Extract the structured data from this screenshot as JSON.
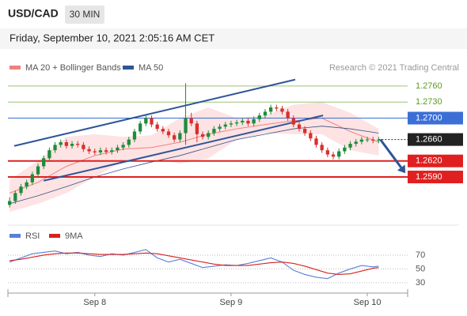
{
  "header": {
    "symbol": "USD/CAD",
    "timeframe": "30 MIN",
    "datetime": "Friday, September 10, 2021 2:05:16 AM CET"
  },
  "chart_data": [
    {
      "type": "candlestick",
      "credit": "Research © 2021 Trading Central",
      "xlim": [
        -0.3,
        70.1
      ],
      "ylim": [
        1.25,
        1.281
      ],
      "xticks": [
        {
          "value": 15,
          "label": "Sep 8"
        },
        {
          "value": 39,
          "label": "Sep 9"
        },
        {
          "value": 63,
          "label": "Sep 10"
        }
      ],
      "up_color": "#1e8c3a",
      "down_color": "#d9302c",
      "candles": [
        [
          1.2538,
          1.2552,
          1.2533,
          1.2545
        ],
        [
          1.2545,
          1.2565,
          1.254,
          1.256
        ],
        [
          1.256,
          1.2577,
          1.2555,
          1.2572
        ],
        [
          1.2572,
          1.2585,
          1.2567,
          1.258
        ],
        [
          1.258,
          1.26,
          1.2575,
          1.2595
        ],
        [
          1.2595,
          1.2615,
          1.259,
          1.261
        ],
        [
          1.261,
          1.263,
          1.2605,
          1.2625
        ],
        [
          1.2625,
          1.2645,
          1.262,
          1.264
        ],
        [
          1.264,
          1.2655,
          1.2635,
          1.265
        ],
        [
          1.265,
          1.266,
          1.2645,
          1.2655
        ],
        [
          1.2655,
          1.266,
          1.2643,
          1.2648
        ],
        [
          1.2648,
          1.2657,
          1.2643,
          1.2652
        ],
        [
          1.2652,
          1.2657,
          1.2645,
          1.265
        ],
        [
          1.265,
          1.2655,
          1.2637,
          1.2642
        ],
        [
          1.2642,
          1.2647,
          1.2633,
          1.2638
        ],
        [
          1.2638,
          1.2643,
          1.2631,
          1.2636
        ],
        [
          1.2636,
          1.2645,
          1.2631,
          1.264
        ],
        [
          1.264,
          1.2645,
          1.2632,
          1.2637
        ],
        [
          1.2637,
          1.2645,
          1.2632,
          1.264
        ],
        [
          1.264,
          1.265,
          1.2635,
          1.2645
        ],
        [
          1.2645,
          1.2655,
          1.264,
          1.265
        ],
        [
          1.265,
          1.2665,
          1.2645,
          1.266
        ],
        [
          1.266,
          1.268,
          1.2655,
          1.2675
        ],
        [
          1.2675,
          1.2695,
          1.267,
          1.269
        ],
        [
          1.269,
          1.2705,
          1.2685,
          1.27
        ],
        [
          1.27,
          1.2705,
          1.2683,
          1.2688
        ],
        [
          1.2688,
          1.2693,
          1.2675,
          1.268
        ],
        [
          1.268,
          1.2685,
          1.267,
          1.2675
        ],
        [
          1.2675,
          1.268,
          1.2663,
          1.2668
        ],
        [
          1.2668,
          1.2673,
          1.2655,
          1.266
        ],
        [
          1.266,
          1.2677,
          1.2655,
          1.2672
        ],
        [
          1.2672,
          1.2765,
          1.265,
          1.27
        ],
        [
          1.27,
          1.271,
          1.2685,
          1.269
        ],
        [
          1.269,
          1.2695,
          1.2655,
          1.267
        ],
        [
          1.267,
          1.2675,
          1.266,
          1.2665
        ],
        [
          1.2665,
          1.2677,
          1.266,
          1.2672
        ],
        [
          1.2672,
          1.2685,
          1.2667,
          1.268
        ],
        [
          1.268,
          1.2689,
          1.2675,
          1.2684
        ],
        [
          1.2684,
          1.2693,
          1.2679,
          1.2688
        ],
        [
          1.2688,
          1.2695,
          1.2683,
          1.269
        ],
        [
          1.269,
          1.2697,
          1.2685,
          1.2692
        ],
        [
          1.2692,
          1.27,
          1.2687,
          1.2695
        ],
        [
          1.2695,
          1.27,
          1.2685,
          1.269
        ],
        [
          1.269,
          1.2703,
          1.2685,
          1.2698
        ],
        [
          1.2698,
          1.271,
          1.2693,
          1.2705
        ],
        [
          1.2705,
          1.2717,
          1.27,
          1.2712
        ],
        [
          1.2712,
          1.2725,
          1.2707,
          1.272
        ],
        [
          1.272,
          1.2725,
          1.2713,
          1.2718
        ],
        [
          1.2718,
          1.2723,
          1.2707,
          1.2712
        ],
        [
          1.2712,
          1.2717,
          1.2695,
          1.27
        ],
        [
          1.27,
          1.2705,
          1.2683,
          1.2688
        ],
        [
          1.2688,
          1.2693,
          1.2675,
          1.268
        ],
        [
          1.268,
          1.2685,
          1.2667,
          1.2672
        ],
        [
          1.2672,
          1.2677,
          1.2657,
          1.2662
        ],
        [
          1.2662,
          1.2667,
          1.2645,
          1.265
        ],
        [
          1.265,
          1.2655,
          1.2635,
          1.264
        ],
        [
          1.264,
          1.2645,
          1.2627,
          1.2632
        ],
        [
          1.2632,
          1.2637,
          1.2623,
          1.2628
        ],
        [
          1.2628,
          1.2643,
          1.2623,
          1.2638
        ],
        [
          1.2638,
          1.265,
          1.2633,
          1.2645
        ],
        [
          1.2645,
          1.2657,
          1.264,
          1.2652
        ],
        [
          1.2652,
          1.2661,
          1.2647,
          1.2656
        ],
        [
          1.2656,
          1.2665,
          1.2651,
          1.266
        ],
        [
          1.266,
          1.2665,
          1.2655,
          1.266
        ],
        [
          1.266,
          1.2665,
          1.2653,
          1.2658
        ],
        [
          1.2658,
          1.2665,
          1.2653,
          1.266
        ]
      ],
      "bands": {
        "name": "MA 20 + Bollinger Bands",
        "color": "#f08080",
        "fill": "#fde3e3",
        "x": [
          0,
          5,
          10,
          15,
          20,
          25,
          30,
          35,
          40,
          45,
          50,
          55,
          60,
          65
        ],
        "ma20": [
          1.256,
          1.258,
          1.261,
          1.263,
          1.2642,
          1.2645,
          1.2655,
          1.267,
          1.268,
          1.2688,
          1.2695,
          1.27,
          1.2675,
          1.2655
        ],
        "upper": [
          1.2585,
          1.262,
          1.2665,
          1.267,
          1.2665,
          1.2668,
          1.27,
          1.272,
          1.27,
          1.2705,
          1.2725,
          1.273,
          1.271,
          1.268
        ],
        "lower": [
          1.2525,
          1.254,
          1.256,
          1.259,
          1.262,
          1.2625,
          1.2615,
          1.2625,
          1.266,
          1.2672,
          1.267,
          1.267,
          1.264,
          1.263
        ]
      },
      "ma50": {
        "name": "MA 50",
        "color": "#3a4f8a",
        "x": [
          0,
          5,
          10,
          15,
          20,
          25,
          30,
          35,
          40,
          45,
          50,
          55,
          60,
          65
        ],
        "values": [
          1.254,
          1.2555,
          1.2572,
          1.259,
          1.2605,
          1.2618,
          1.263,
          1.2645,
          1.266,
          1.267,
          1.268,
          1.2685,
          1.268,
          1.2672
        ]
      },
      "trendlines": [
        [
          0.8,
          1.2648,
          50.3,
          1.2772
        ],
        [
          6,
          1.2583,
          55.2,
          1.2705
        ]
      ],
      "trend_color": "#2f5597",
      "arrow": [
        65.3,
        1.266,
        69.7,
        1.2597
      ],
      "levels": [
        {
          "value": 1.276,
          "label": "1.2760",
          "color": "#5a9e1e",
          "style": "text"
        },
        {
          "value": 1.273,
          "label": "1.2730",
          "color": "#5a9e1e",
          "style": "text"
        },
        {
          "value": 1.27,
          "label": "1.2700",
          "color": "#3c6fd6",
          "style": "box"
        },
        {
          "value": 1.266,
          "label": "1.2660",
          "color": "#222222",
          "style": "current"
        },
        {
          "value": 1.262,
          "label": "1.2620",
          "color": "#e02020",
          "style": "box"
        },
        {
          "value": 1.259,
          "label": "1.2590",
          "color": "#e02020",
          "style": "box"
        }
      ]
    },
    {
      "type": "line",
      "xlim": [
        -0.3,
        70.1
      ],
      "ylim": [
        15,
        105
      ],
      "yticks": [
        30,
        50,
        70
      ],
      "x": [
        0,
        2,
        4,
        6,
        8,
        10,
        12,
        14,
        16,
        18,
        20,
        22,
        24,
        26,
        28,
        30,
        32,
        34,
        36,
        38,
        40,
        42,
        44,
        46,
        48,
        50,
        52,
        54,
        56,
        58,
        60,
        62,
        64,
        65
      ],
      "series": [
        {
          "name": "RSI",
          "color": "#5b7fd6",
          "values": [
            60,
            66,
            72,
            74,
            76,
            72,
            74,
            70,
            68,
            72,
            70,
            74,
            78,
            66,
            60,
            64,
            58,
            52,
            54,
            56,
            55,
            58,
            62,
            66,
            60,
            48,
            42,
            38,
            36,
            44,
            50,
            55,
            53,
            54
          ]
        },
        {
          "name": "9MA",
          "color": "#d92020",
          "values": [
            62,
            64,
            67,
            70,
            72,
            73,
            73,
            72,
            71,
            71,
            71,
            72,
            73,
            72,
            69,
            66,
            63,
            60,
            57,
            55,
            55,
            55,
            57,
            59,
            60,
            58,
            54,
            49,
            44,
            42,
            43,
            47,
            51,
            52
          ]
        }
      ]
    }
  ]
}
